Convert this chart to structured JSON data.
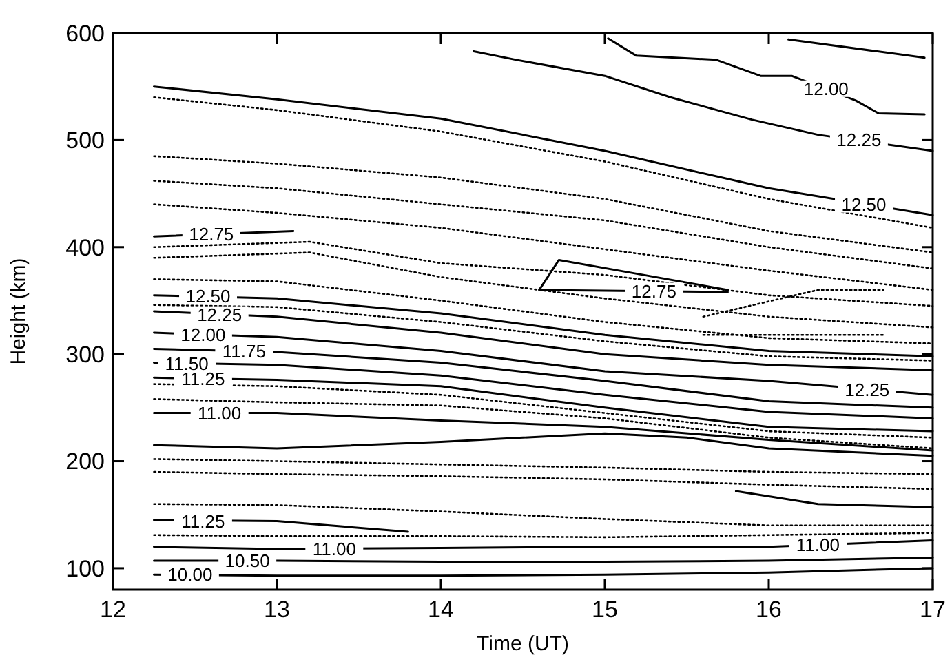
{
  "chart_data": {
    "type": "line",
    "xlabel": "Time (UT)",
    "ylabel": "Height (km)",
    "xlim": [
      12,
      17
    ],
    "ylim": [
      80,
      600
    ],
    "xticks": [
      12,
      13,
      14,
      15,
      16,
      17
    ],
    "yticks": [
      100,
      200,
      300,
      400,
      500,
      600
    ],
    "marker": "none",
    "series": [
      {
        "color": "#000000",
        "line_style": "solid",
        "x": [
          12.25,
          13,
          14,
          15,
          16,
          17
        ],
        "values": [
          550,
          538,
          520,
          490,
          455,
          430
        ]
      },
      {
        "color": "#000000",
        "line_style": "solid",
        "x": [
          14.2,
          14.46,
          15,
          15.4,
          15.9,
          16.3,
          17
        ],
        "values": [
          583,
          575,
          560,
          540,
          519,
          505,
          490
        ]
      },
      {
        "color": "#000000",
        "line_style": "solid",
        "x": [
          15.02,
          15.19,
          15.68,
          15.95,
          16.14,
          16.53,
          16.67,
          16.95
        ],
        "values": [
          595,
          579,
          575,
          560,
          560,
          537,
          525,
          524
        ]
      },
      {
        "color": "#000000",
        "line_style": "solid",
        "x": [
          16.12,
          16.95
        ],
        "values": [
          594,
          577
        ]
      },
      {
        "color": "#000000",
        "line_style": "dotted",
        "x": [
          12.25,
          13,
          14,
          15,
          16,
          17
        ],
        "values": [
          540,
          528,
          508,
          480,
          445,
          418
        ]
      },
      {
        "color": "#000000",
        "line_style": "dotted",
        "x": [
          12.25,
          13,
          14,
          15,
          16,
          17
        ],
        "values": [
          485,
          478,
          465,
          445,
          415,
          395
        ]
      },
      {
        "color": "#000000",
        "line_style": "dotted",
        "x": [
          12.25,
          13,
          14,
          15,
          16,
          17
        ],
        "values": [
          462,
          455,
          440,
          425,
          400,
          380
        ]
      },
      {
        "color": "#000000",
        "line_style": "dotted",
        "x": [
          12.25,
          13,
          14,
          15,
          16,
          17
        ],
        "values": [
          440,
          432,
          418,
          398,
          378,
          360
        ]
      },
      {
        "color": "#000000",
        "line_style": "solid",
        "x": [
          12.25,
          13.1
        ],
        "values": [
          410,
          415
        ]
      },
      {
        "color": "#000000",
        "line_style": "dotted",
        "x": [
          12.25,
          13.2,
          14,
          15,
          16,
          17
        ],
        "values": [
          400,
          405,
          385,
          374,
          355,
          345
        ]
      },
      {
        "color": "#000000",
        "line_style": "dotted",
        "x": [
          12.25,
          13.2,
          14,
          15,
          16,
          17
        ],
        "values": [
          390,
          395,
          372,
          352,
          335,
          325
        ]
      },
      {
        "color": "#000000",
        "line_style": "solid",
        "x": [
          14.6,
          14.72,
          15.2,
          15.75
        ],
        "values": [
          360,
          388,
          375,
          360
        ]
      },
      {
        "color": "#000000",
        "line_style": "solid",
        "x": [
          14.6,
          15.75
        ],
        "values": [
          360,
          358
        ]
      },
      {
        "color": "#000000",
        "line_style": "dotted",
        "x": [
          15.6,
          16.3,
          16.7
        ],
        "values": [
          335,
          360,
          360
        ]
      },
      {
        "color": "#000000",
        "line_style": "dotted",
        "x": [
          15.6,
          16.7
        ],
        "values": [
          318,
          318
        ]
      },
      {
        "color": "#000000",
        "line_style": "dotted",
        "x": [
          12.25,
          13,
          14,
          15,
          16,
          17
        ],
        "values": [
          370,
          368,
          350,
          330,
          315,
          310
        ]
      },
      {
        "color": "#000000",
        "line_style": "solid",
        "x": [
          12.25,
          13,
          14,
          15,
          16,
          17
        ],
        "values": [
          355,
          352,
          338,
          318,
          303,
          298
        ]
      },
      {
        "color": "#000000",
        "line_style": "solid",
        "x": [
          12.25,
          13,
          14,
          15,
          16,
          17
        ],
        "values": [
          340,
          335,
          320,
          300,
          290,
          285
        ]
      },
      {
        "color": "#000000",
        "line_style": "dotted",
        "x": [
          12.25,
          13,
          14,
          15,
          16,
          17
        ],
        "values": [
          346,
          344,
          330,
          312,
          298,
          294
        ]
      },
      {
        "color": "#000000",
        "line_style": "solid",
        "x": [
          12.25,
          13,
          14,
          15,
          16,
          17
        ],
        "values": [
          320,
          316,
          303,
          284,
          275,
          262
        ]
      },
      {
        "color": "#000000",
        "line_style": "solid",
        "x": [
          12.25,
          13,
          14,
          15,
          16,
          17
        ],
        "values": [
          305,
          302,
          292,
          275,
          256,
          250
        ]
      },
      {
        "color": "#000000",
        "line_style": "solid",
        "x": [
          12.25,
          13,
          14,
          15,
          16,
          17
        ],
        "values": [
          292,
          290,
          280,
          262,
          246,
          240
        ]
      },
      {
        "color": "#000000",
        "line_style": "solid",
        "x": [
          12.25,
          13,
          14,
          15,
          16,
          17
        ],
        "values": [
          278,
          276,
          270,
          250,
          232,
          228
        ]
      },
      {
        "color": "#000000",
        "line_style": "dotted",
        "x": [
          12.25,
          13,
          14,
          15,
          16,
          17
        ],
        "values": [
          272,
          270,
          262,
          245,
          228,
          222
        ]
      },
      {
        "color": "#000000",
        "line_style": "dotted",
        "x": [
          12.25,
          13,
          14,
          15,
          16,
          17
        ],
        "values": [
          258,
          255,
          252,
          240,
          222,
          212
        ]
      },
      {
        "color": "#000000",
        "line_style": "solid",
        "x": [
          12.25,
          13,
          14,
          15,
          16,
          17
        ],
        "values": [
          245,
          245,
          238,
          232,
          220,
          210
        ]
      },
      {
        "color": "#000000",
        "line_style": "solid",
        "x": [
          12.25,
          13,
          14,
          15,
          15.5,
          16,
          17
        ],
        "values": [
          215,
          212,
          218,
          226,
          222,
          212,
          205
        ]
      },
      {
        "color": "#000000",
        "line_style": "dotted",
        "x": [
          12.25,
          13,
          14,
          15,
          16,
          17
        ],
        "values": [
          202,
          200,
          197,
          194,
          190,
          188
        ]
      },
      {
        "color": "#000000",
        "line_style": "dotted",
        "x": [
          12.25,
          13,
          14,
          15,
          16,
          17
        ],
        "values": [
          190,
          188,
          186,
          183,
          178,
          174
        ]
      },
      {
        "color": "#000000",
        "line_style": "solid",
        "x": [
          15.8,
          16.3,
          17
        ],
        "values": [
          172,
          160,
          157
        ]
      },
      {
        "color": "#000000",
        "line_style": "dotted",
        "x": [
          12.25,
          13,
          14,
          15,
          16,
          17
        ],
        "values": [
          160,
          159,
          153,
          146,
          140,
          140
        ]
      },
      {
        "color": "#000000",
        "line_style": "solid",
        "x": [
          12.25,
          13,
          13.8
        ],
        "values": [
          145,
          144,
          134
        ]
      },
      {
        "color": "#000000",
        "line_style": "dotted",
        "x": [
          12.25,
          13,
          14,
          15,
          16,
          17
        ],
        "values": [
          131,
          130,
          130,
          129,
          131,
          133
        ]
      },
      {
        "color": "#000000",
        "line_style": "solid",
        "x": [
          12.25,
          13,
          14,
          15,
          16,
          17
        ],
        "values": [
          120,
          118,
          119,
          120,
          120,
          126
        ]
      },
      {
        "color": "#000000",
        "line_style": "solid",
        "x": [
          12.25,
          13,
          14,
          15,
          16,
          17
        ],
        "values": [
          107,
          107,
          106,
          106,
          107,
          110
        ]
      },
      {
        "color": "#000000",
        "line_style": "solid",
        "x": [
          12.25,
          13,
          14,
          15,
          16,
          17
        ],
        "values": [
          94,
          93,
          93,
          94,
          96,
          100
        ]
      }
    ],
    "annotations": [
      {
        "text": "12.00",
        "x": 16.35,
        "y": 548
      },
      {
        "text": "12.25",
        "x": 16.55,
        "y": 500
      },
      {
        "text": "12.50",
        "x": 16.58,
        "y": 440
      },
      {
        "text": "12.75",
        "x": 12.6,
        "y": 412
      },
      {
        "text": "12.75",
        "x": 15.3,
        "y": 359
      },
      {
        "text": "12.50",
        "x": 12.58,
        "y": 354
      },
      {
        "text": "12.25",
        "x": 12.65,
        "y": 337
      },
      {
        "text": "12.00",
        "x": 12.55,
        "y": 318
      },
      {
        "text": "11.75",
        "x": 12.8,
        "y": 303
      },
      {
        "text": "11.50",
        "x": 12.45,
        "y": 291
      },
      {
        "text": "11.25",
        "x": 12.55,
        "y": 277
      },
      {
        "text": "11.00",
        "x": 12.65,
        "y": 245
      },
      {
        "text": "12.25",
        "x": 16.6,
        "y": 267
      },
      {
        "text": "11.25",
        "x": 12.55,
        "y": 144
      },
      {
        "text": "11.00",
        "x": 13.35,
        "y": 118
      },
      {
        "text": "11.00",
        "x": 16.3,
        "y": 122
      },
      {
        "text": "10.50",
        "x": 12.82,
        "y": 107
      },
      {
        "text": "10.00",
        "x": 12.47,
        "y": 94
      }
    ]
  }
}
